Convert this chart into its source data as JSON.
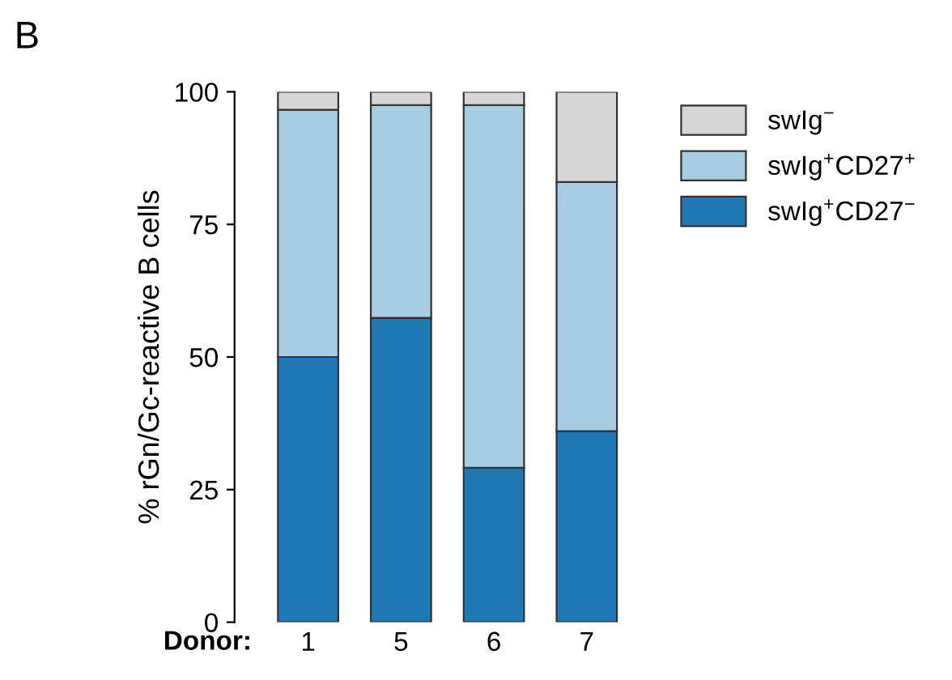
{
  "chart_data": {
    "type": "bar",
    "stacked": true,
    "categories": [
      "1",
      "5",
      "6",
      "7"
    ],
    "xlabel": "Donor:",
    "ylabel": "% rGn/Gc-reactive B cells",
    "ylim": [
      0,
      100
    ],
    "yticks": [
      0,
      25,
      50,
      75,
      100
    ],
    "grid": false,
    "legend": "top right",
    "annotations": [
      "B"
    ],
    "series": [
      {
        "name": "swIg$^{+}$CD27$^{−}$",
        "color": "#1f77b4",
        "values": [
          50,
          57.4,
          29.1,
          36.0
        ]
      },
      {
        "name": "swIg$^{+}$CD27$^{+}$",
        "color": "#a8cde3",
        "values": [
          46.6,
          40.1,
          68.4,
          47.0
        ]
      },
      {
        "name": "swIg$^{−}$",
        "color": "#d6d6d6",
        "values": [
          3.4,
          2.5,
          2.5,
          17.0
        ]
      }
    ]
  }
}
